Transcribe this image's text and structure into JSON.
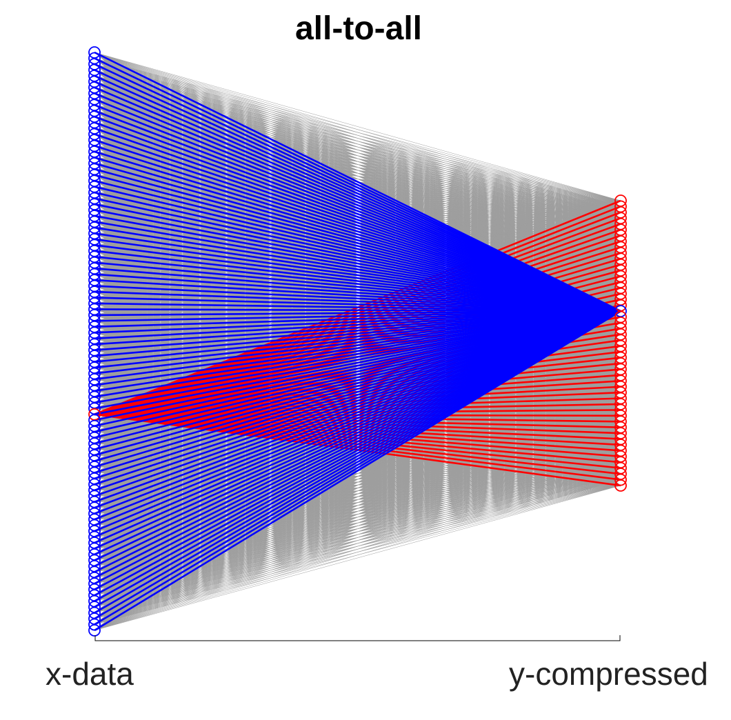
{
  "title": "all-to-all",
  "axis": {
    "left_label": "x-data",
    "right_label": "y-compressed"
  },
  "network": {
    "left_layer": {
      "name": "x-data",
      "node_count": 100,
      "highlight_index": 62
    },
    "right_layer": {
      "name": "y-compressed",
      "node_count": 50,
      "highlight_index": 19
    },
    "connection": "all-to-all",
    "colors": {
      "background_edges": "#9e9e9e",
      "left_nodes": "#0000ff",
      "right_nodes": "#ff0000",
      "left_highlight_edges": "#ff0000",
      "right_highlight_edges": "#0000ff"
    }
  }
}
